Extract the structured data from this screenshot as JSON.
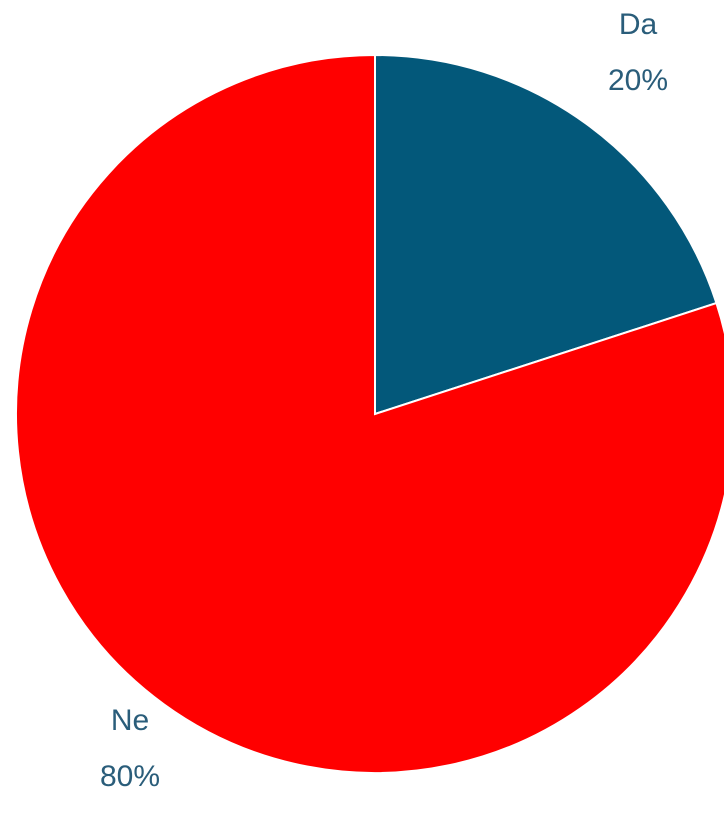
{
  "chart_data": {
    "type": "pie",
    "title": "",
    "start_angle_deg": 0,
    "direction": "clockwise",
    "slices": [
      {
        "label": "Da",
        "value": 20,
        "value_label": "20%",
        "color": "#03587a"
      },
      {
        "label": "Ne",
        "value": 80,
        "value_label": "80%",
        "color": "#ff0000"
      }
    ],
    "legend": "none"
  }
}
